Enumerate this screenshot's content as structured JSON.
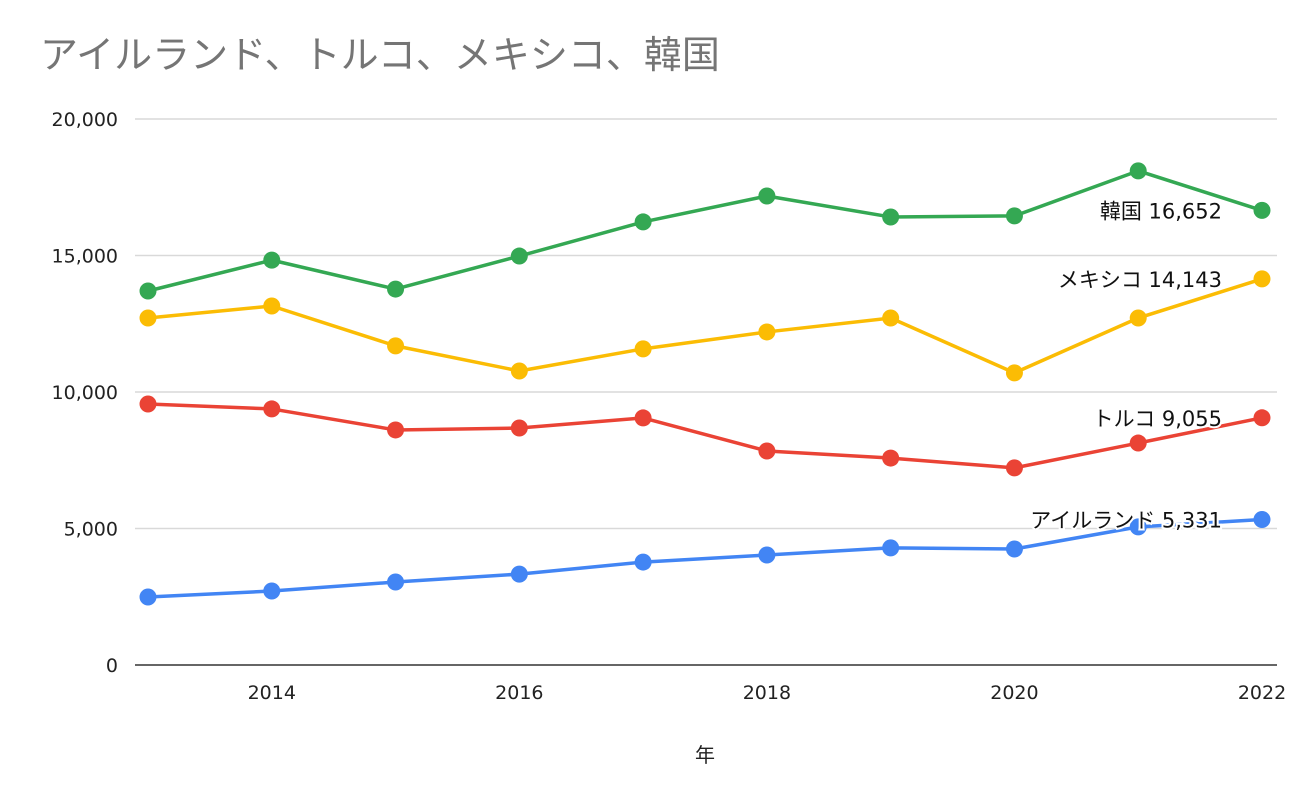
{
  "chart_data": {
    "type": "line",
    "title": "アイルランド、トルコ、メキシコ、韓国",
    "xlabel": "年",
    "ylabel": "",
    "x": [
      2013,
      2014,
      2015,
      2016,
      2017,
      2018,
      2019,
      2020,
      2021,
      2022
    ],
    "xticks": [
      "2014",
      "2016",
      "2018",
      "2020",
      "2022"
    ],
    "xtick_values": [
      2014,
      2016,
      2018,
      2020,
      2022
    ],
    "ylim": [
      0,
      20000
    ],
    "yticks": [
      "0",
      "5,000",
      "10,000",
      "15,000",
      "20,000"
    ],
    "ytick_values": [
      0,
      5000,
      10000,
      15000,
      20000
    ],
    "grid": true,
    "series": [
      {
        "name": "韓国",
        "color": "#34a853",
        "end_label": "韓国 16,652",
        "values": [
          13700,
          14830,
          13770,
          14980,
          16230,
          17180,
          16410,
          16450,
          18100,
          16652
        ]
      },
      {
        "name": "メキシコ",
        "color": "#fbbc04",
        "end_label": "メキシコ 14,143",
        "values": [
          12710,
          13150,
          11690,
          10770,
          11580,
          12200,
          12710,
          10700,
          12710,
          14143
        ]
      },
      {
        "name": "トルコ",
        "color": "#ea4335",
        "end_label": "トルコ 9,055",
        "values": [
          9560,
          9380,
          8610,
          8680,
          9050,
          7840,
          7580,
          7220,
          8130,
          9055
        ]
      },
      {
        "name": "アイルランド",
        "color": "#4285f4",
        "end_label": "アイルランド 5,331",
        "values": [
          2490,
          2710,
          3040,
          3330,
          3770,
          4030,
          4290,
          4250,
          5060,
          5331
        ]
      }
    ]
  }
}
